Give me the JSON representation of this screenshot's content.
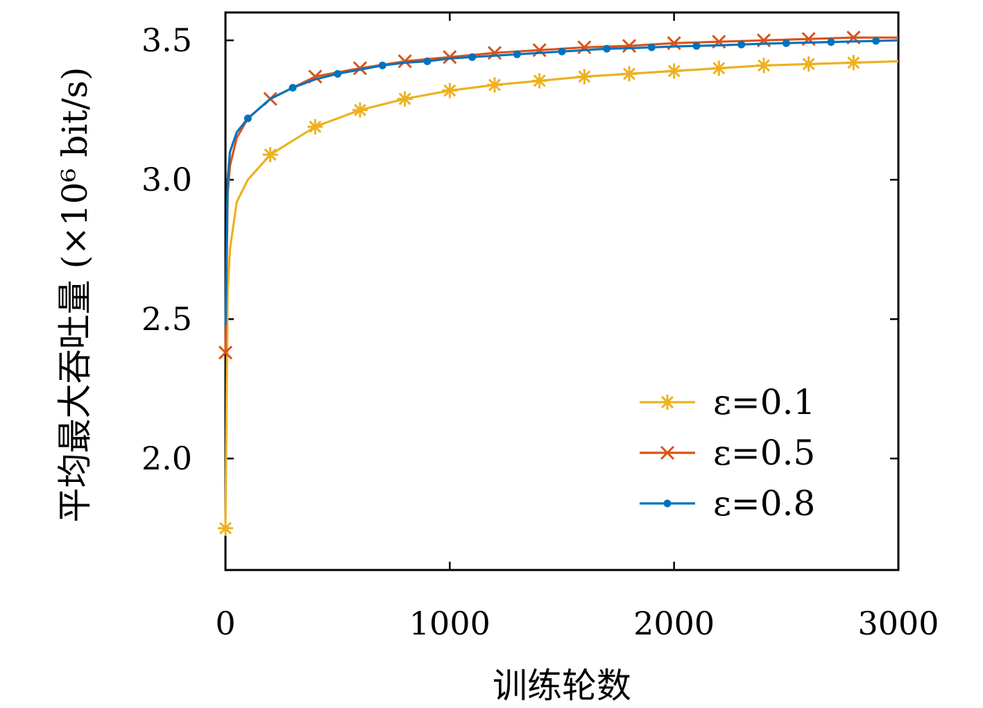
{
  "chart_data": {
    "type": "line",
    "xlabel": "训练轮数",
    "ylabel": "平均最大吞吐量 (×10⁶ bit/s)",
    "xlim": [
      0,
      3000
    ],
    "ylim": [
      1.6,
      3.6
    ],
    "xticks": [
      0,
      1000,
      2000,
      3000
    ],
    "xtick_labels": [
      "0",
      "1000",
      "2000",
      "3000"
    ],
    "yticks": [
      2.0,
      2.5,
      3.0,
      3.5
    ],
    "ytick_labels": [
      "2.0",
      "2.5",
      "3.0",
      "3.5"
    ],
    "grid": false,
    "legend_position": "bottom-right",
    "series": [
      {
        "name": "ε=0.1",
        "color": "#EDB120",
        "marker": "asterisk",
        "x": [
          0,
          10,
          20,
          50,
          100,
          200,
          400,
          600,
          800,
          1000,
          1200,
          1400,
          1600,
          1800,
          2000,
          2200,
          2400,
          2600,
          2800,
          3000
        ],
        "y": [
          1.75,
          2.6,
          2.75,
          2.92,
          3.0,
          3.09,
          3.19,
          3.25,
          3.29,
          3.32,
          3.34,
          3.355,
          3.37,
          3.38,
          3.39,
          3.4,
          3.41,
          3.415,
          3.42,
          3.425
        ],
        "marker_x": [
          0,
          200,
          400,
          600,
          800,
          1000,
          1200,
          1400,
          1600,
          1800,
          2000,
          2200,
          2400,
          2600,
          2800
        ]
      },
      {
        "name": "ε=0.5",
        "color": "#D95319",
        "marker": "x",
        "x": [
          0,
          10,
          20,
          50,
          100,
          200,
          400,
          600,
          800,
          1000,
          1200,
          1400,
          1600,
          1800,
          2000,
          2200,
          2400,
          2600,
          2800,
          3000
        ],
        "y": [
          2.38,
          2.95,
          3.05,
          3.15,
          3.22,
          3.29,
          3.37,
          3.4,
          3.425,
          3.44,
          3.455,
          3.465,
          3.475,
          3.48,
          3.49,
          3.495,
          3.5,
          3.505,
          3.51,
          3.51
        ],
        "marker_x": [
          0,
          200,
          400,
          600,
          800,
          1000,
          1200,
          1400,
          1600,
          1800,
          2000,
          2200,
          2400,
          2600,
          2800
        ]
      },
      {
        "name": "ε=0.8",
        "color": "#0072BD",
        "marker": "dot",
        "x": [
          0,
          10,
          20,
          50,
          100,
          200,
          300,
          400,
          500,
          600,
          700,
          800,
          900,
          1000,
          1100,
          1200,
          1300,
          1400,
          1500,
          1600,
          1700,
          1800,
          1900,
          2000,
          2100,
          2200,
          2300,
          2400,
          2500,
          2600,
          2700,
          2800,
          2900,
          3000
        ],
        "y": [
          2.48,
          3.0,
          3.1,
          3.17,
          3.22,
          3.29,
          3.33,
          3.36,
          3.38,
          3.395,
          3.41,
          3.42,
          3.425,
          3.435,
          3.44,
          3.445,
          3.45,
          3.455,
          3.46,
          3.465,
          3.47,
          3.472,
          3.475,
          3.478,
          3.48,
          3.482,
          3.485,
          3.488,
          3.49,
          3.492,
          3.494,
          3.496,
          3.498,
          3.5
        ],
        "marker_x": [
          100,
          300,
          500,
          700,
          900,
          1100,
          1300,
          1500,
          1700,
          1900,
          2100,
          2300,
          2500,
          2700,
          2900
        ]
      }
    ]
  }
}
